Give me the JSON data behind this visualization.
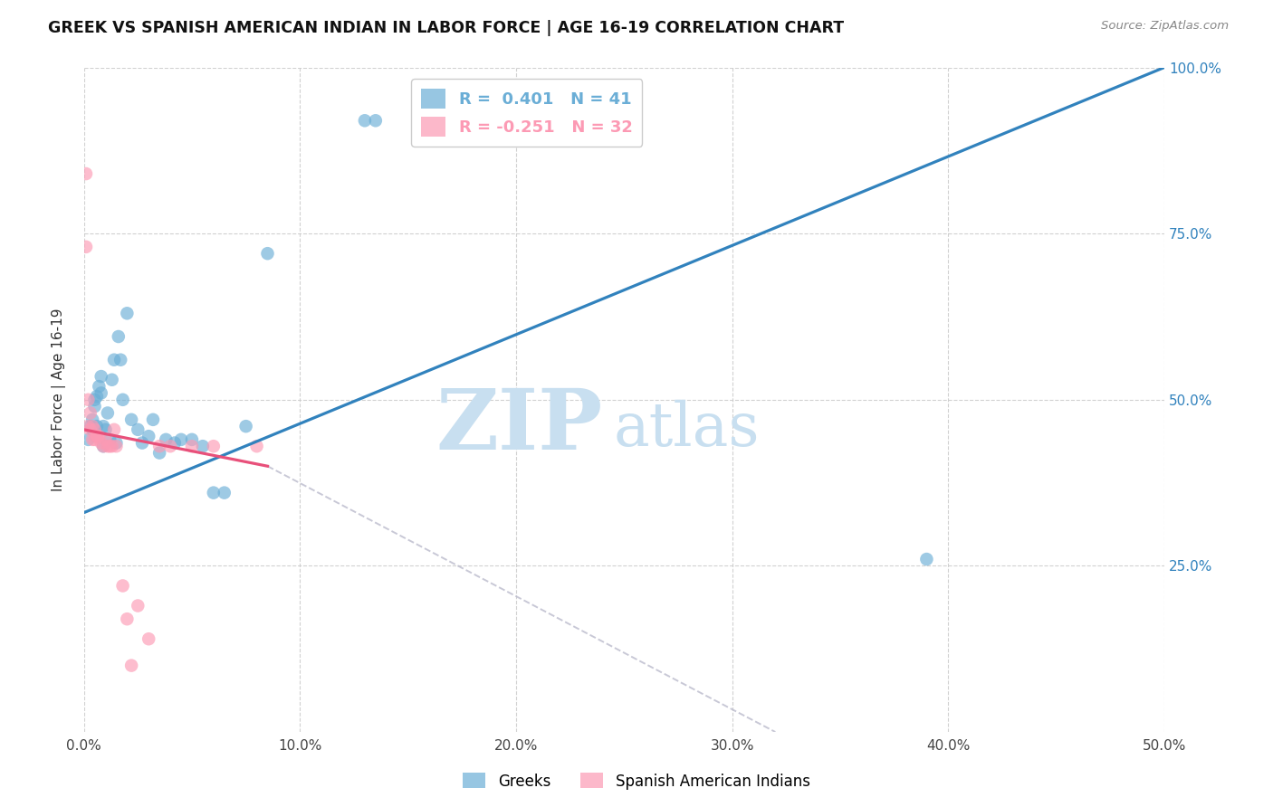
{
  "title": "GREEK VS SPANISH AMERICAN INDIAN IN LABOR FORCE | AGE 16-19 CORRELATION CHART",
  "source": "Source: ZipAtlas.com",
  "ylabel": "In Labor Force | Age 16-19",
  "xlim": [
    0.0,
    0.5
  ],
  "ylim": [
    0.0,
    1.0
  ],
  "xtick_labels": [
    "0.0%",
    "10.0%",
    "20.0%",
    "30.0%",
    "40.0%",
    "50.0%"
  ],
  "xtick_values": [
    0.0,
    0.1,
    0.2,
    0.3,
    0.4,
    0.5
  ],
  "ytick_labels_right": [
    "100.0%",
    "75.0%",
    "50.0%",
    "25.0%"
  ],
  "ytick_values": [
    1.0,
    0.75,
    0.5,
    0.25
  ],
  "greek_color": "#6baed6",
  "spanish_color": "#fc9ab4",
  "greek_R": 0.401,
  "greek_N": 41,
  "spanish_R": -0.251,
  "spanish_N": 32,
  "watermark_ZIP": "ZIP",
  "watermark_atlas": "atlas",
  "watermark_color": "#c8dff0",
  "legend_label_greek": "Greeks",
  "legend_label_spanish": "Spanish American Indians",
  "greek_scatter_x": [
    0.002,
    0.003,
    0.004,
    0.004,
    0.005,
    0.005,
    0.006,
    0.006,
    0.007,
    0.008,
    0.008,
    0.009,
    0.009,
    0.01,
    0.011,
    0.012,
    0.013,
    0.014,
    0.015,
    0.016,
    0.017,
    0.018,
    0.02,
    0.022,
    0.025,
    0.027,
    0.03,
    0.032,
    0.035,
    0.038,
    0.042,
    0.045,
    0.05,
    0.055,
    0.06,
    0.065,
    0.075,
    0.085,
    0.13,
    0.135,
    0.39
  ],
  "greek_scatter_y": [
    0.44,
    0.46,
    0.455,
    0.47,
    0.5,
    0.49,
    0.505,
    0.46,
    0.52,
    0.51,
    0.535,
    0.43,
    0.46,
    0.455,
    0.48,
    0.44,
    0.53,
    0.56,
    0.435,
    0.595,
    0.56,
    0.5,
    0.63,
    0.47,
    0.455,
    0.435,
    0.445,
    0.47,
    0.42,
    0.44,
    0.435,
    0.44,
    0.44,
    0.43,
    0.36,
    0.36,
    0.46,
    0.72,
    0.92,
    0.92,
    0.26
  ],
  "spanish_scatter_x": [
    0.001,
    0.001,
    0.002,
    0.002,
    0.003,
    0.003,
    0.004,
    0.004,
    0.005,
    0.005,
    0.006,
    0.006,
    0.006,
    0.007,
    0.008,
    0.009,
    0.01,
    0.011,
    0.012,
    0.013,
    0.014,
    0.015,
    0.018,
    0.02,
    0.022,
    0.025,
    0.03,
    0.035,
    0.04,
    0.05,
    0.06,
    0.08
  ],
  "spanish_scatter_y": [
    0.84,
    0.73,
    0.5,
    0.46,
    0.48,
    0.455,
    0.46,
    0.44,
    0.455,
    0.44,
    0.445,
    0.445,
    0.445,
    0.445,
    0.435,
    0.43,
    0.44,
    0.43,
    0.43,
    0.43,
    0.455,
    0.43,
    0.22,
    0.17,
    0.1,
    0.19,
    0.14,
    0.43,
    0.43,
    0.43,
    0.43,
    0.43
  ],
  "blue_line_x": [
    0.0,
    0.5
  ],
  "blue_line_y": [
    0.33,
    1.0
  ],
  "pink_line_x": [
    0.0,
    0.085
  ],
  "pink_line_y": [
    0.455,
    0.4
  ],
  "gray_line_x": [
    0.085,
    0.32
  ],
  "gray_line_y": [
    0.4,
    0.0
  ]
}
